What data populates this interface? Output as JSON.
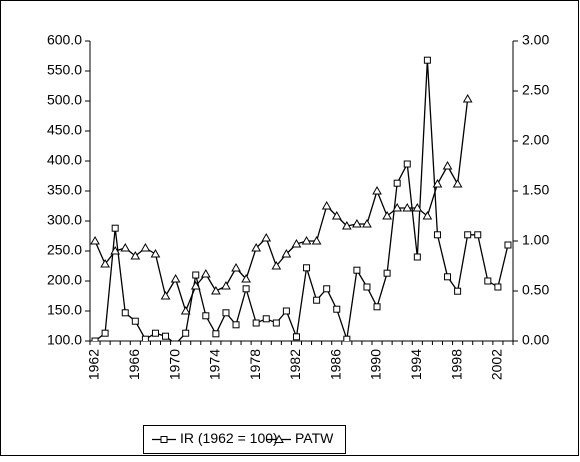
{
  "chart_data": {
    "type": "line",
    "categories": [
      "1962",
      null,
      null,
      null,
      "1966",
      null,
      null,
      null,
      "1970",
      null,
      null,
      null,
      "1974",
      null,
      null,
      null,
      "1978",
      null,
      null,
      null,
      "1982",
      null,
      null,
      null,
      "1986",
      null,
      null,
      null,
      "1990",
      null,
      null,
      null,
      "1994",
      null,
      null,
      null,
      "1998",
      null,
      null,
      null,
      "2002",
      null
    ],
    "series": [
      {
        "name": "IR (1962 = 100)",
        "color": "#000000",
        "marker": "square",
        "axis": "y",
        "values": [
          100,
          113,
          288,
          147,
          133,
          103,
          113,
          108,
          95,
          113,
          210,
          142,
          112,
          147,
          127,
          187,
          130,
          137,
          130,
          150,
          107,
          222,
          168,
          187,
          153,
          103,
          218,
          190,
          157,
          213,
          363,
          395,
          240,
          568,
          277,
          207,
          183,
          277,
          277,
          200,
          190,
          260
        ]
      },
      {
        "name": "PATW",
        "color": "#000000",
        "marker": "triangle",
        "axis": "y2",
        "values": [
          1.0,
          0.77,
          0.9,
          0.93,
          0.85,
          0.93,
          0.87,
          0.45,
          0.62,
          0.3,
          0.55,
          0.67,
          0.5,
          0.55,
          0.73,
          0.62,
          0.93,
          1.03,
          0.75,
          0.87,
          0.97,
          1.0,
          1.0,
          1.35,
          1.25,
          1.15,
          1.17,
          1.17,
          1.5,
          1.25,
          1.33,
          1.33,
          1.33,
          1.25,
          1.57,
          1.75,
          1.57,
          2.42,
          null,
          null,
          null,
          null
        ]
      }
    ],
    "ylim": [
      100,
      600
    ],
    "yticks": [
      {
        "value": 100,
        "label": "100.0"
      },
      {
        "value": 150,
        "label": "150.0"
      },
      {
        "value": 200,
        "label": "200.0"
      },
      {
        "value": 250,
        "label": "250.0"
      },
      {
        "value": 300,
        "label": "300.0"
      },
      {
        "value": 350,
        "label": "350.0"
      },
      {
        "value": 400,
        "label": "400.0"
      },
      {
        "value": 450,
        "label": "450.0"
      },
      {
        "value": 500,
        "label": "500.0"
      },
      {
        "value": 550,
        "label": "550.0"
      },
      {
        "value": 600,
        "label": "600.0"
      }
    ],
    "y2lim": [
      0,
      3
    ],
    "y2ticks": [
      {
        "value": 0,
        "label": "0.00"
      },
      {
        "value": 0.5,
        "label": "0.50"
      },
      {
        "value": 1,
        "label": "1.00"
      },
      {
        "value": 1.5,
        "label": "1.50"
      },
      {
        "value": 2,
        "label": "2.00"
      },
      {
        "value": 2.5,
        "label": "2.50"
      },
      {
        "value": 3,
        "label": "3.00"
      }
    ],
    "grid": false,
    "legend": "bottom"
  }
}
